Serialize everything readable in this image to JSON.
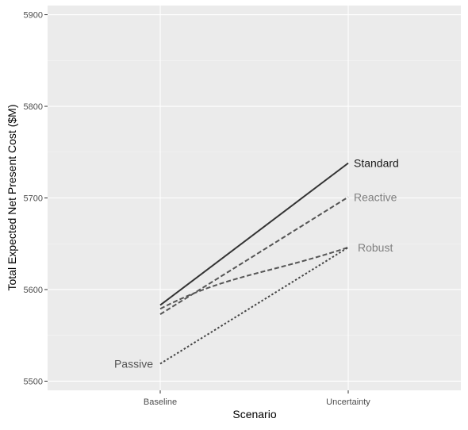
{
  "chart_data": {
    "type": "line",
    "title": "",
    "xlabel": "Scenario",
    "ylabel": "Total Expected Net Present Cost ($M)",
    "categories": [
      "Baseline",
      "Uncertainty"
    ],
    "ylim": [
      5490,
      5910
    ],
    "yticks": [
      5500,
      5600,
      5700,
      5800,
      5900
    ],
    "grid": true,
    "legend": "direct labels at line ends",
    "series": [
      {
        "name": "Standard",
        "values": [
          5583,
          5738
        ],
        "line_style": "solid",
        "color": "#333333",
        "label_color": "#1a1a1a",
        "label_side": "right"
      },
      {
        "name": "Reactive",
        "values": [
          5573,
          5701
        ],
        "line_style": "dashed",
        "color": "#555555",
        "label_color": "#7f7f7f",
        "label_side": "right"
      },
      {
        "name": "Robust",
        "values": [
          5579,
          5646
        ],
        "line_style": "dashed",
        "curved": true,
        "color": "#555555",
        "label_color": "#7f7f7f",
        "label_side": "right"
      },
      {
        "name": "Passive",
        "values": [
          5519,
          5646
        ],
        "line_style": "dotted",
        "color": "#444444",
        "label_color": "#555555",
        "label_side": "left"
      }
    ]
  }
}
